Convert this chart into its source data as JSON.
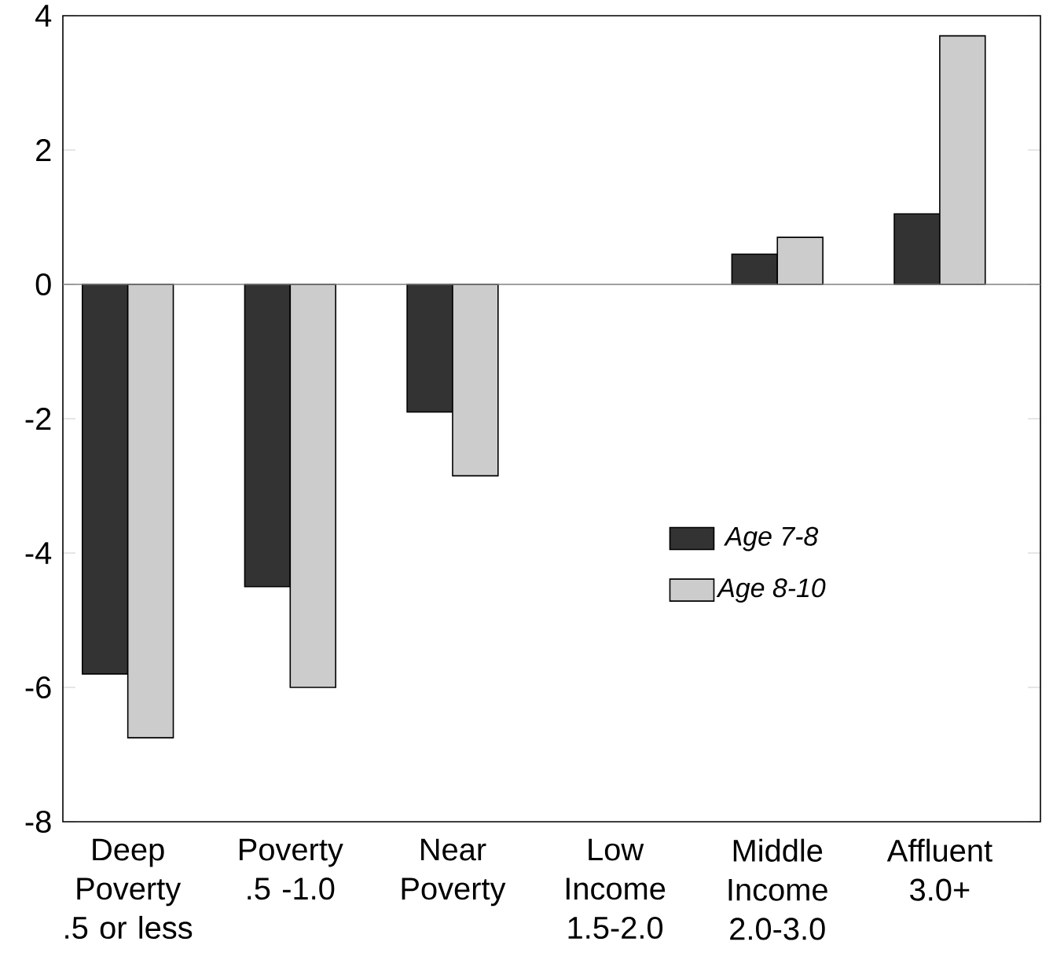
{
  "chart_data": {
    "type": "bar",
    "categories": [
      "Deep Poverty .5 or less",
      "Poverty .5 -1.0",
      "Near Poverty",
      "Low Income 1.5-2.0",
      "Middle Income 2.0-3.0",
      "Affluent 3.0+"
    ],
    "series": [
      {
        "name": "*Age 7-8*",
        "color": "#333333",
        "values": [
          -5.8,
          -4.5,
          -1.9,
          null,
          0.45,
          1.05
        ]
      },
      {
        "name": "*Age 8-10*",
        "color": "#cccccc",
        "values": [
          -6.75,
          -6.0,
          -2.85,
          null,
          0.7,
          3.7
        ]
      }
    ],
    "ylim": [
      -8,
      4
    ],
    "yticks": [
      -8,
      -6,
      -4,
      -2,
      0,
      2,
      4
    ],
    "ref_lines": [
      {
        "axis": "y",
        "value": 0,
        "color": "#808080"
      }
    ],
    "legend": "right",
    "grid": false
  }
}
